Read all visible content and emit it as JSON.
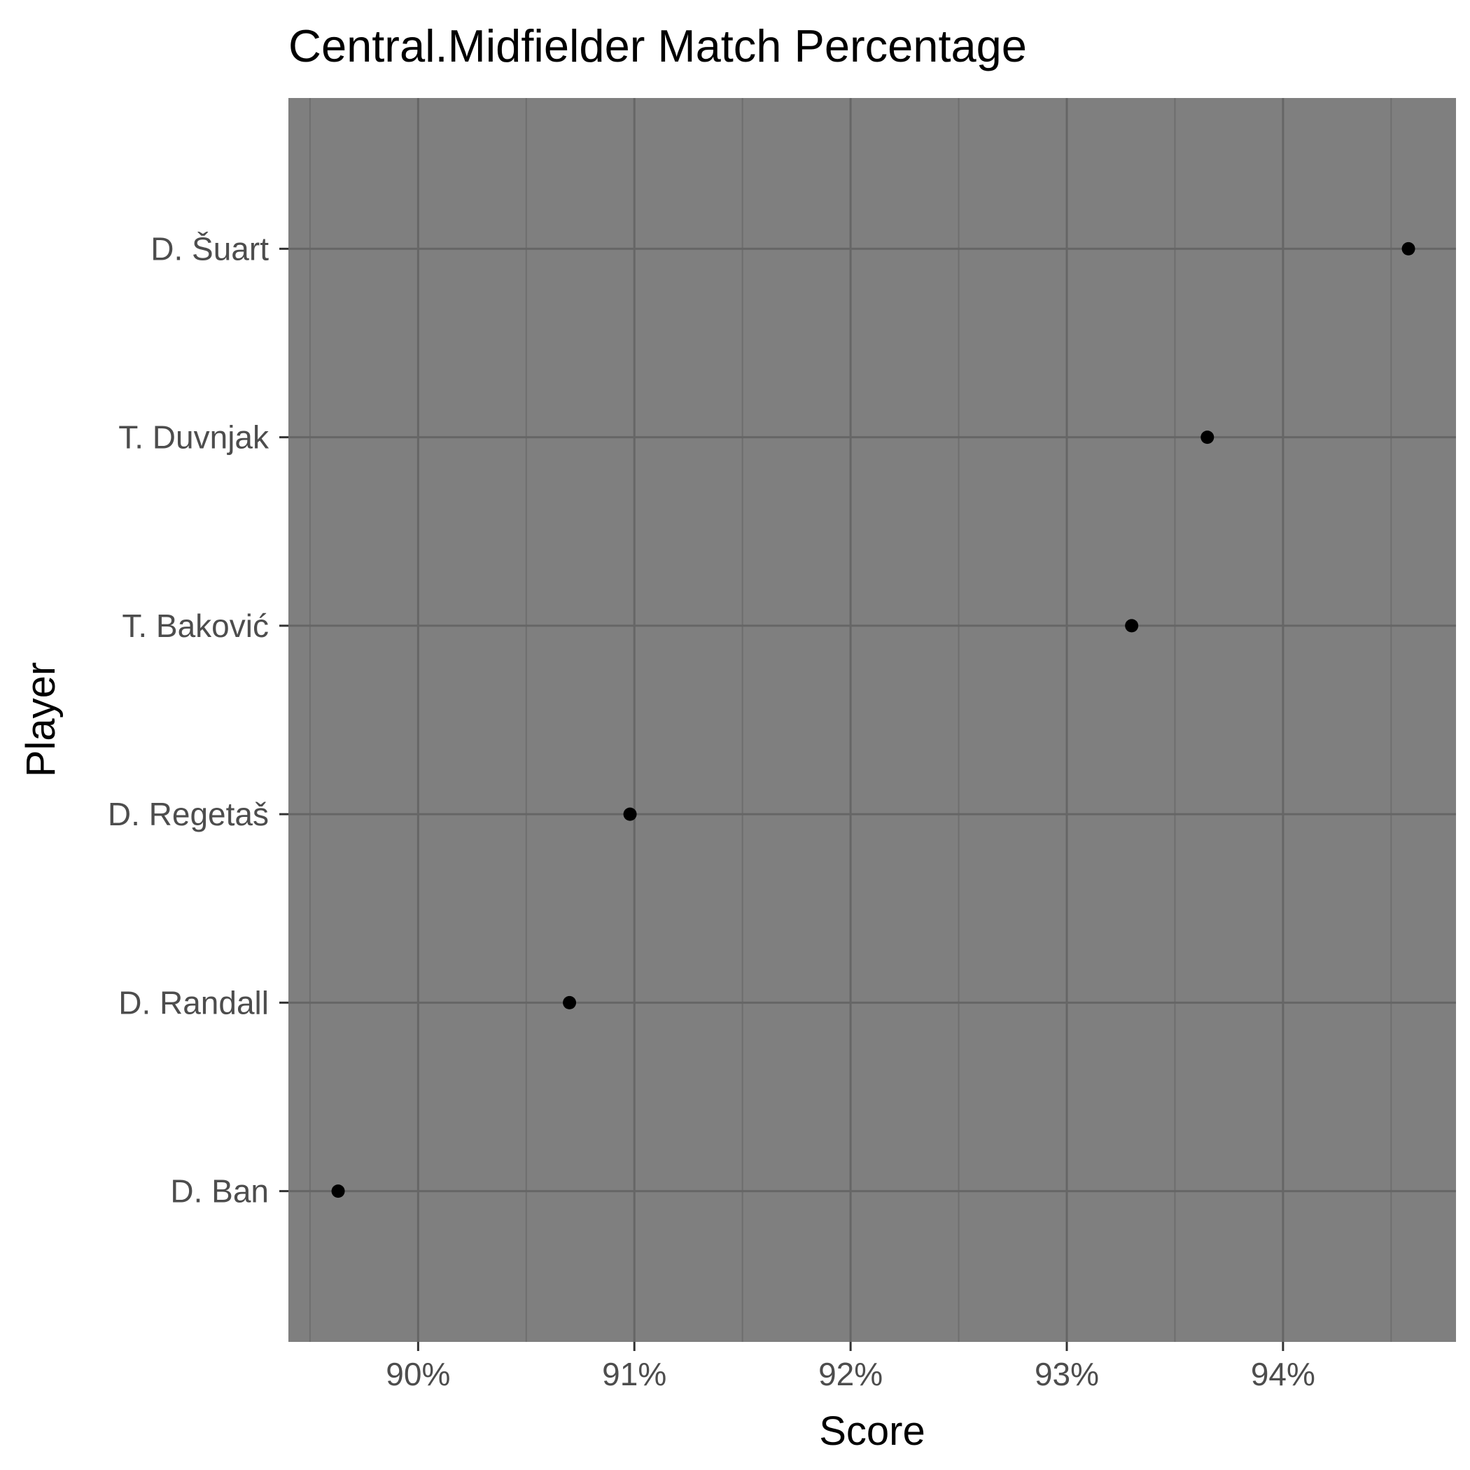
{
  "chart_data": {
    "type": "scatter",
    "title": "Central.Midfielder  Match Percentage",
    "xlabel": "Score",
    "ylabel": "Player",
    "categories": [
      "D. Šuart",
      "T. Duvnjak",
      "T. Baković",
      "D. Regetaš",
      "D. Randall",
      "D. Ban"
    ],
    "series": [
      {
        "values": [
          94.58,
          93.65,
          93.3,
          90.98,
          90.7,
          89.63
        ]
      }
    ],
    "xlim": [
      89.4,
      94.8
    ],
    "x_ticks": [
      90,
      91,
      92,
      93,
      94
    ],
    "x_tick_labels": [
      "90%",
      "91%",
      "92%",
      "93%",
      "94%"
    ],
    "grid": true,
    "legend": "none",
    "colors": {
      "panel": "#7f7f7f",
      "grid_major": "#666666",
      "grid_minor": "#6e6e6e",
      "point": "#000000",
      "tick_text": "#4d4d4d"
    }
  }
}
